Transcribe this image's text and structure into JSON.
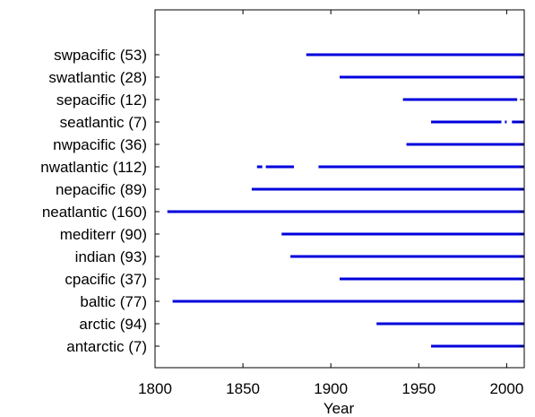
{
  "chart_data": {
    "type": "line",
    "title": "",
    "xlabel": "Year",
    "ylabel": "",
    "xlim": [
      1800,
      2010
    ],
    "xticks": [
      1800,
      1850,
      1900,
      1950,
      2000
    ],
    "grid": false,
    "line_color": "#0000dd",
    "categories": [
      "swpacific (53)",
      "swatlantic (28)",
      "sepacific (12)",
      "seatlantic (7)",
      "nwpacific (36)",
      "nwatlantic (112)",
      "nepacific (89)",
      "neatlantic (160)",
      "mediterr (90)",
      "indian (93)",
      "cpacific (37)",
      "baltic (77)",
      "arctic (94)",
      "antarctic (7)"
    ],
    "segments": [
      [
        [
          1886,
          2010
        ]
      ],
      [
        [
          1905,
          2010
        ]
      ],
      [
        [
          1941,
          2006
        ]
      ],
      [
        [
          1957,
          1997
        ],
        [
          1999,
          2000
        ],
        [
          2003,
          2010
        ]
      ],
      [
        [
          1943,
          2010
        ]
      ],
      [
        [
          1858,
          1861
        ],
        [
          1863,
          1879
        ],
        [
          1893,
          2010
        ]
      ],
      [
        [
          1855,
          2010
        ]
      ],
      [
        [
          1807,
          2010
        ]
      ],
      [
        [
          1872,
          2010
        ]
      ],
      [
        [
          1877,
          2010
        ]
      ],
      [
        [
          1905,
          2010
        ]
      ],
      [
        [
          1810,
          2010
        ]
      ],
      [
        [
          1926,
          2010
        ]
      ],
      [
        [
          1957,
          2010
        ]
      ]
    ]
  }
}
